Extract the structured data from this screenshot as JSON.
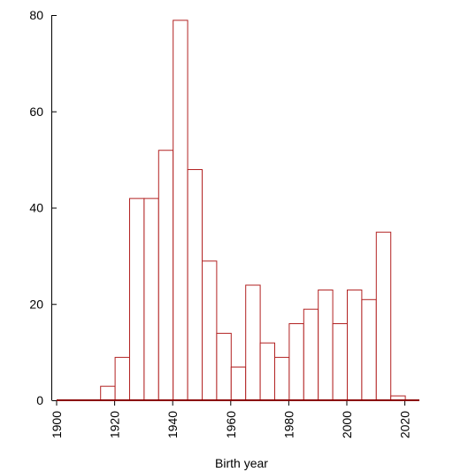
{
  "chart_data": {
    "type": "bar",
    "subtype": "histogram",
    "xlabel": "Birth year",
    "ylabel": "",
    "xlim": [
      1900,
      2025
    ],
    "ylim": [
      0,
      80
    ],
    "bin_width": 5,
    "x_ticks": [
      1900,
      1920,
      1940,
      1960,
      1980,
      2000,
      2020
    ],
    "y_ticks": [
      0,
      20,
      40,
      60,
      80
    ],
    "grid": false,
    "bar_fill": "#ffffff",
    "bar_stroke": "#b22222",
    "baseline_color": "#8b0000",
    "bins": [
      {
        "start": 1915,
        "end": 1920,
        "value": 3
      },
      {
        "start": 1920,
        "end": 1925,
        "value": 9
      },
      {
        "start": 1925,
        "end": 1930,
        "value": 42
      },
      {
        "start": 1930,
        "end": 1935,
        "value": 42
      },
      {
        "start": 1935,
        "end": 1940,
        "value": 52
      },
      {
        "start": 1940,
        "end": 1945,
        "value": 79
      },
      {
        "start": 1945,
        "end": 1950,
        "value": 48
      },
      {
        "start": 1950,
        "end": 1955,
        "value": 29
      },
      {
        "start": 1955,
        "end": 1960,
        "value": 14
      },
      {
        "start": 1960,
        "end": 1965,
        "value": 7
      },
      {
        "start": 1965,
        "end": 1970,
        "value": 24
      },
      {
        "start": 1970,
        "end": 1975,
        "value": 12
      },
      {
        "start": 1975,
        "end": 1980,
        "value": 9
      },
      {
        "start": 1980,
        "end": 1985,
        "value": 16
      },
      {
        "start": 1985,
        "end": 1990,
        "value": 19
      },
      {
        "start": 1990,
        "end": 1995,
        "value": 23
      },
      {
        "start": 1995,
        "end": 2000,
        "value": 16
      },
      {
        "start": 2000,
        "end": 2005,
        "value": 23
      },
      {
        "start": 2005,
        "end": 2010,
        "value": 21
      },
      {
        "start": 2010,
        "end": 2015,
        "value": 35
      },
      {
        "start": 2015,
        "end": 2020,
        "value": 1
      }
    ]
  }
}
